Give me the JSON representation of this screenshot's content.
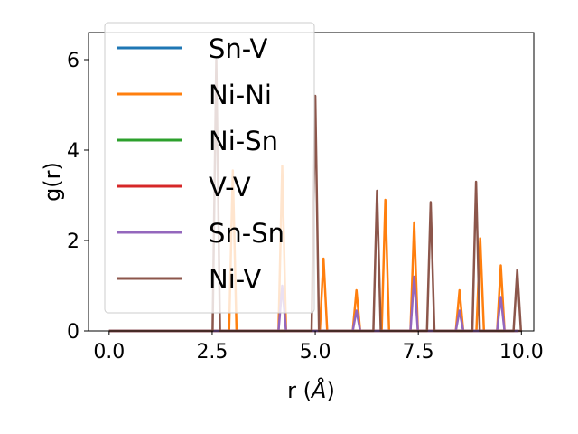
{
  "chart_data": {
    "type": "line",
    "xlabel": "r (Å)",
    "ylabel": "g(r)",
    "xlim": [
      -0.5,
      10.3
    ],
    "ylim": [
      0,
      6.6
    ],
    "xticks": [
      0.0,
      2.5,
      5.0,
      7.5,
      10.0
    ],
    "xtick_labels": [
      "0.0",
      "2.5",
      "5.0",
      "7.5",
      "10.0"
    ],
    "yticks": [
      0,
      2,
      4,
      6
    ],
    "ytick_labels": [
      "0",
      "2",
      "4",
      "6"
    ],
    "grid": false,
    "legend_position": "top-left",
    "series": [
      {
        "name": "Sn-V",
        "color": "#1f77b4",
        "peaks": []
      },
      {
        "name": "Ni-Ni",
        "color": "#ff7f0e",
        "peaks": [
          [
            3.0,
            3.55
          ],
          [
            4.2,
            3.65
          ],
          [
            5.2,
            1.6
          ],
          [
            6.0,
            0.9
          ],
          [
            6.7,
            2.9
          ],
          [
            7.4,
            2.4
          ],
          [
            8.5,
            0.9
          ],
          [
            9.0,
            2.05
          ],
          [
            9.5,
            1.45
          ]
        ]
      },
      {
        "name": "Ni-Sn",
        "color": "#2ca02c",
        "peaks": []
      },
      {
        "name": "V-V",
        "color": "#d62728",
        "peaks": []
      },
      {
        "name": "Sn-Sn",
        "color": "#9467bd",
        "peaks": [
          [
            4.2,
            1.0
          ],
          [
            6.0,
            0.45
          ],
          [
            7.4,
            1.2
          ],
          [
            8.5,
            0.45
          ],
          [
            9.5,
            0.75
          ]
        ]
      },
      {
        "name": "Ni-V",
        "color": "#8c564b",
        "peaks": [
          [
            2.6,
            6.0
          ],
          [
            5.0,
            5.2
          ],
          [
            6.5,
            3.1
          ],
          [
            7.8,
            2.85
          ],
          [
            8.9,
            3.3
          ],
          [
            9.9,
            1.35
          ]
        ]
      }
    ]
  }
}
